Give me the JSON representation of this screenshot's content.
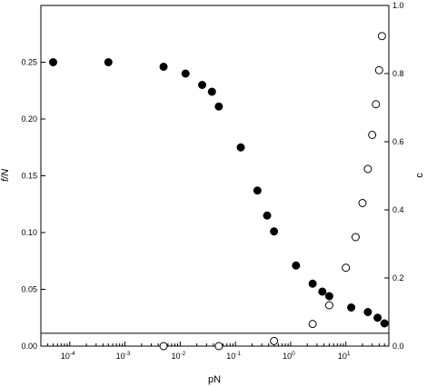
{
  "chart_data": {
    "type": "scatter",
    "xlabel": "pN",
    "ylabel": "f/N",
    "ylabel_right": "c",
    "x_scale": "log",
    "xlim": [
      3e-05,
      60
    ],
    "ylim": [
      0,
      0.3
    ],
    "ylim_right": [
      0,
      1.0
    ],
    "grid": false,
    "x_tick_base": "10",
    "x_ticks": [
      {
        "exp": "-4",
        "value": 0.0001
      },
      {
        "exp": "-3",
        "value": 0.001
      },
      {
        "exp": "-2",
        "value": 0.01
      },
      {
        "exp": "-1",
        "value": 0.1
      },
      {
        "exp": "0",
        "value": 1
      },
      {
        "exp": "1",
        "value": 10
      }
    ],
    "y_ticks": [
      {
        "label": "0.00",
        "value": 0.0
      },
      {
        "label": "0.05",
        "value": 0.05
      },
      {
        "label": "0.10",
        "value": 0.1
      },
      {
        "label": "0.15",
        "value": 0.15
      },
      {
        "label": "0.20",
        "value": 0.2
      },
      {
        "label": "0.25",
        "value": 0.25
      }
    ],
    "y_right_ticks": [
      {
        "label": "0.0",
        "value": 0.0
      },
      {
        "label": "0.2",
        "value": 0.2
      },
      {
        "label": "0.4",
        "value": 0.4
      },
      {
        "label": "0.6",
        "value": 0.6
      },
      {
        "label": "0.8",
        "value": 0.8
      },
      {
        "label": "1.0",
        "value": 1.0
      }
    ],
    "reference_line": {
      "axis": "left",
      "y": 0.0113
    },
    "series": [
      {
        "marker": "filled-circle",
        "axis": "left",
        "color": "#000000",
        "points": [
          [
            5e-05,
            0.25
          ],
          [
            0.0005,
            0.25
          ],
          [
            0.005,
            0.246
          ],
          [
            0.0125,
            0.24
          ],
          [
            0.025,
            0.23
          ],
          [
            0.0375,
            0.224
          ],
          [
            0.05,
            0.211
          ],
          [
            0.125,
            0.175
          ],
          [
            0.25,
            0.137
          ],
          [
            0.375,
            0.115
          ],
          [
            0.5,
            0.101
          ],
          [
            1.25,
            0.071
          ],
          [
            2.5,
            0.055
          ],
          [
            3.75,
            0.048
          ],
          [
            5,
            0.044
          ],
          [
            12.5,
            0.034
          ],
          [
            25,
            0.03
          ],
          [
            37.5,
            0.025
          ],
          [
            50,
            0.02
          ]
        ]
      },
      {
        "marker": "open-circle",
        "axis": "right",
        "color": "#000000",
        "points": [
          [
            0.005,
            0.0
          ],
          [
            0.05,
            0.0
          ],
          [
            0.5,
            0.015
          ],
          [
            2.5,
            0.065
          ],
          [
            5,
            0.12
          ],
          [
            10,
            0.23
          ],
          [
            15,
            0.32
          ],
          [
            20,
            0.42
          ],
          [
            25,
            0.52
          ],
          [
            30,
            0.62
          ],
          [
            35,
            0.71
          ],
          [
            40,
            0.81
          ],
          [
            45,
            0.91
          ]
        ]
      }
    ]
  }
}
